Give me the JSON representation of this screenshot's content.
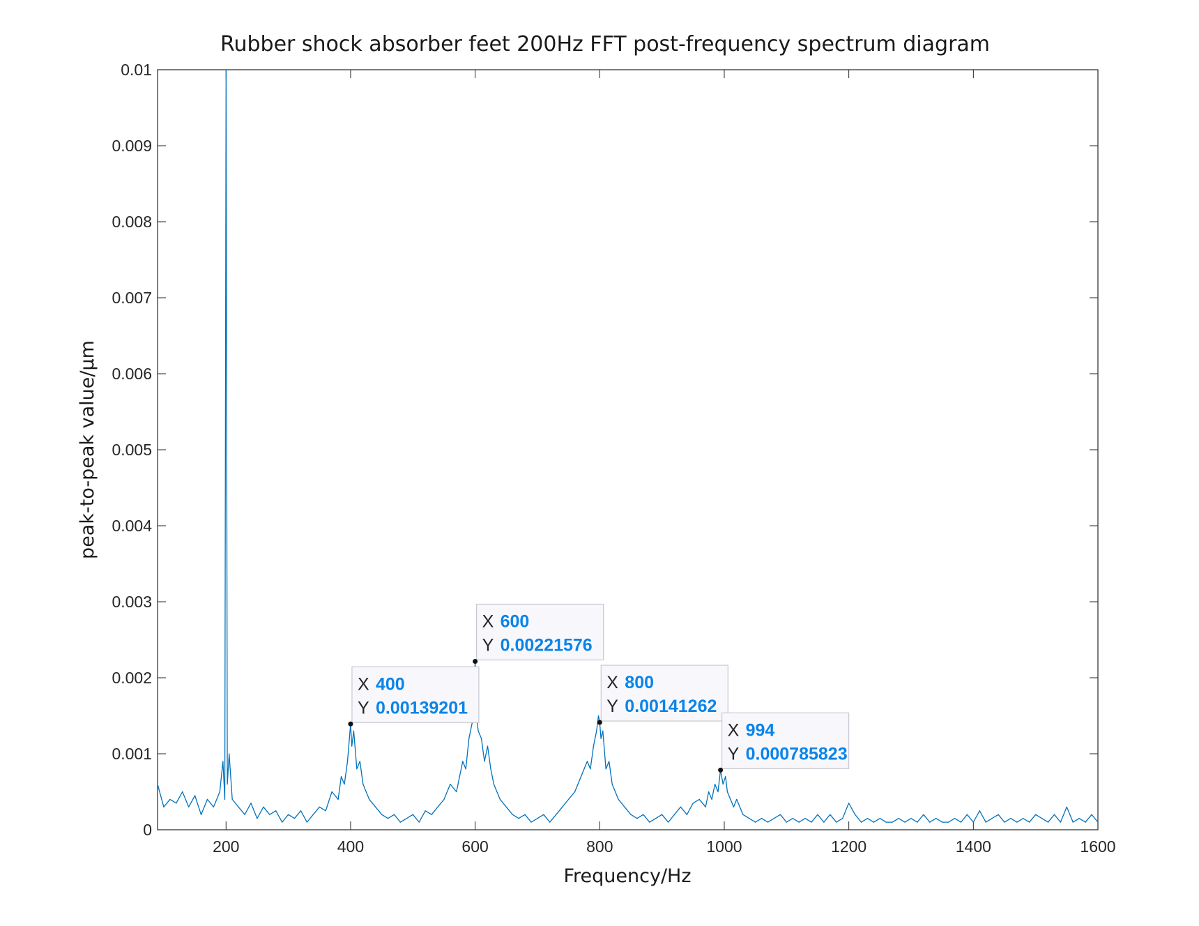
{
  "chart_data": {
    "type": "line",
    "title": "Rubber shock absorber feet 200Hz FFT post-frequency spectrum diagram",
    "xlabel": "Frequency/Hz",
    "ylabel": "peak-to-peak value/μm",
    "xlim": [
      90,
      1600
    ],
    "ylim": [
      0,
      0.01
    ],
    "xticks": [
      200,
      400,
      600,
      800,
      1000,
      1200,
      1400,
      1600
    ],
    "yticks": [
      0,
      0.001,
      0.002,
      0.003,
      0.004,
      0.005,
      0.006,
      0.007,
      0.008,
      0.009,
      0.01
    ],
    "grid": false,
    "legend": "none",
    "line_color": "#0072bd",
    "series": [
      {
        "x": [
          90,
          100,
          110,
          120,
          130,
          140,
          150,
          160,
          170,
          180,
          190,
          195,
          198,
          200,
          202,
          205,
          210,
          220,
          230,
          240,
          250,
          260,
          270,
          280,
          290,
          300,
          310,
          320,
          330,
          340,
          350,
          360,
          370,
          380,
          385,
          390,
          395,
          398,
          400,
          402,
          405,
          410,
          415,
          420,
          430,
          440,
          450,
          460,
          470,
          480,
          490,
          500,
          510,
          520,
          530,
          540,
          550,
          560,
          570,
          580,
          585,
          590,
          595,
          598,
          600,
          602,
          605,
          610,
          615,
          620,
          625,
          630,
          640,
          650,
          660,
          670,
          680,
          690,
          700,
          710,
          720,
          730,
          740,
          750,
          760,
          770,
          780,
          785,
          790,
          795,
          798,
          800,
          802,
          805,
          810,
          815,
          820,
          830,
          840,
          850,
          860,
          870,
          880,
          890,
          900,
          910,
          920,
          930,
          940,
          950,
          960,
          970,
          975,
          980,
          985,
          990,
          994,
          998,
          1002,
          1005,
          1010,
          1015,
          1020,
          1030,
          1040,
          1050,
          1060,
          1070,
          1080,
          1090,
          1100,
          1110,
          1120,
          1130,
          1140,
          1150,
          1160,
          1170,
          1180,
          1190,
          1200,
          1210,
          1220,
          1230,
          1240,
          1250,
          1260,
          1270,
          1280,
          1290,
          1300,
          1310,
          1320,
          1330,
          1340,
          1350,
          1360,
          1370,
          1380,
          1390,
          1400,
          1410,
          1420,
          1430,
          1440,
          1450,
          1460,
          1470,
          1480,
          1490,
          1500,
          1510,
          1520,
          1530,
          1540,
          1550,
          1560,
          1570,
          1580,
          1590,
          1600
        ],
        "y": [
          0.0006,
          0.0003,
          0.0004,
          0.00035,
          0.0005,
          0.0003,
          0.00045,
          0.0002,
          0.0004,
          0.0003,
          0.0005,
          0.0009,
          0.0004,
          0.01,
          0.0006,
          0.001,
          0.0004,
          0.0003,
          0.0002,
          0.00035,
          0.00015,
          0.0003,
          0.0002,
          0.00025,
          0.0001,
          0.0002,
          0.00015,
          0.00025,
          0.0001,
          0.0002,
          0.0003,
          0.00025,
          0.0005,
          0.0004,
          0.0007,
          0.0006,
          0.0009,
          0.0012,
          0.00139201,
          0.0011,
          0.0013,
          0.0008,
          0.0009,
          0.0006,
          0.0004,
          0.0003,
          0.0002,
          0.00015,
          0.0002,
          0.0001,
          0.00015,
          0.0002,
          0.0001,
          0.00025,
          0.0002,
          0.0003,
          0.0004,
          0.0006,
          0.0005,
          0.0009,
          0.0008,
          0.0012,
          0.0014,
          0.0018,
          0.00221576,
          0.0015,
          0.0013,
          0.0012,
          0.0009,
          0.0011,
          0.0008,
          0.0006,
          0.0004,
          0.0003,
          0.0002,
          0.00015,
          0.0002,
          0.0001,
          0.00015,
          0.0002,
          0.0001,
          0.0002,
          0.0003,
          0.0004,
          0.0005,
          0.0007,
          0.0009,
          0.0008,
          0.0011,
          0.0013,
          0.0015,
          0.00141262,
          0.0012,
          0.0013,
          0.0008,
          0.0009,
          0.0006,
          0.0004,
          0.0003,
          0.0002,
          0.00015,
          0.0002,
          0.0001,
          0.00015,
          0.0002,
          0.0001,
          0.0002,
          0.0003,
          0.0002,
          0.00035,
          0.0004,
          0.0003,
          0.0005,
          0.0004,
          0.0006,
          0.0005,
          0.000785823,
          0.0006,
          0.0007,
          0.0005,
          0.0004,
          0.0003,
          0.0004,
          0.0002,
          0.00015,
          0.0001,
          0.00015,
          0.0001,
          0.00015,
          0.0002,
          0.0001,
          0.00015,
          0.0001,
          0.00015,
          0.0001,
          0.0002,
          0.0001,
          0.0002,
          0.0001,
          0.00015,
          0.00035,
          0.0002,
          0.0001,
          0.00015,
          0.0001,
          0.00015,
          0.0001,
          0.0001,
          0.00015,
          0.0001,
          0.00015,
          0.0001,
          0.0002,
          0.0001,
          0.00015,
          0.0001,
          0.0001,
          0.00015,
          0.0001,
          0.0002,
          0.0001,
          0.00025,
          0.0001,
          0.00015,
          0.0002,
          0.0001,
          0.00015,
          0.0001,
          0.00015,
          0.0001,
          0.0002,
          0.00015,
          0.0001,
          0.0002,
          0.0001,
          0.0003,
          0.0001,
          0.00015,
          0.0001,
          0.0002,
          0.0001
        ]
      }
    ],
    "datatips": [
      {
        "x_label": "X",
        "y_label": "Y",
        "x": "400",
        "y": "0.00139201",
        "xv": 400,
        "yv": 0.00139201
      },
      {
        "x_label": "X",
        "y_label": "Y",
        "x": "600",
        "y": "0.00221576",
        "xv": 600,
        "yv": 0.00221576
      },
      {
        "x_label": "X",
        "y_label": "Y",
        "x": "800",
        "y": "0.00141262",
        "xv": 800,
        "yv": 0.00141262
      },
      {
        "x_label": "X",
        "y_label": "Y",
        "x": "994",
        "y": "0.000785823",
        "xv": 994,
        "yv": 0.000785823
      }
    ]
  }
}
